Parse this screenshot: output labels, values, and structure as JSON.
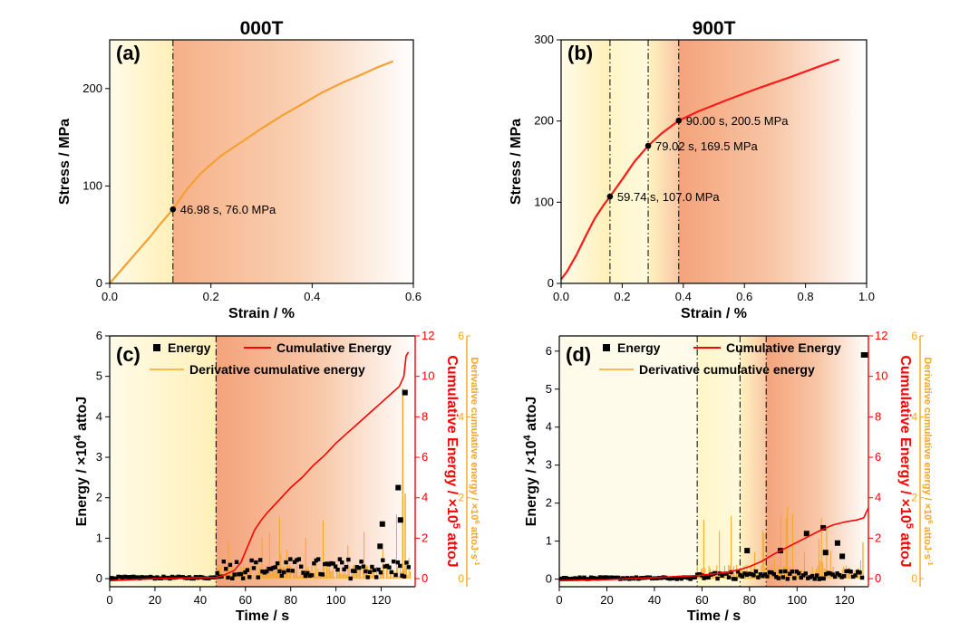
{
  "chart_data": [
    {
      "panel": "(a)",
      "type": "line",
      "title": "000T",
      "xlabel": "Strain / %",
      "ylabel": "Stress / MPa",
      "xlim": [
        0,
        0.6
      ],
      "ylim": [
        0,
        250
      ],
      "xticks": [
        "0.0",
        "0.2",
        "0.4",
        "0.6"
      ],
      "yticks": [
        "0",
        "100",
        "200"
      ],
      "colors": {
        "line": "#f5a033",
        "region1": "#fff6c8",
        "region2": "#f7b98f"
      },
      "series": [
        {
          "x": [
            0,
            0.02,
            0.05,
            0.08,
            0.1,
            0.125,
            0.15,
            0.18,
            0.22,
            0.26,
            0.3,
            0.34,
            0.38,
            0.42,
            0.46,
            0.5,
            0.53,
            0.56
          ],
          "y": [
            0,
            12,
            30,
            48,
            61,
            76,
            95,
            113,
            131,
            145,
            159,
            172,
            184,
            196,
            206,
            215,
            222,
            228
          ]
        }
      ],
      "vlines": [
        0.125
      ],
      "points": [
        {
          "x": 0.125,
          "y": 76.0,
          "label": "46.98 s, 76.0 MPa"
        }
      ]
    },
    {
      "panel": "(b)",
      "type": "line",
      "title": "900T",
      "xlabel": "Strain / %",
      "ylabel": "Stress / MPa",
      "xlim": [
        0,
        1.0
      ],
      "ylim": [
        0,
        300
      ],
      "xticks": [
        "0.0",
        "0.2",
        "0.4",
        "0.6",
        "0.8",
        "1.0"
      ],
      "yticks": [
        "0",
        "100",
        "200",
        "300"
      ],
      "colors": {
        "line": "#ff1a1a",
        "region1": "#fff6c8",
        "region2": "#f7b98f"
      },
      "series": [
        {
          "x": [
            0,
            0.02,
            0.05,
            0.08,
            0.11,
            0.14,
            0.16,
            0.2,
            0.24,
            0.285,
            0.33,
            0.385,
            0.45,
            0.55,
            0.65,
            0.75,
            0.85,
            0.91
          ],
          "y": [
            5,
            15,
            35,
            58,
            80,
            97,
            107,
            128,
            150,
            169.5,
            185,
            200.5,
            212,
            227,
            241,
            254,
            268,
            276
          ]
        }
      ],
      "vlines": [
        0.16,
        0.285,
        0.385
      ],
      "points": [
        {
          "x": 0.16,
          "y": 107.0,
          "label": "59.74 s, 107.0 MPa"
        },
        {
          "x": 0.285,
          "y": 169.5,
          "label": "79.02 s, 169.5 MPa"
        },
        {
          "x": 0.385,
          "y": 200.5,
          "label": "90.00 s, 200.5 MPa"
        }
      ]
    },
    {
      "panel": "(c)",
      "type": "scatter",
      "xlabel": "Time / s",
      "ylabel_main": "Energy / ×10",
      "ylabel_sup": "4",
      "ylabel_unit": " attoJ",
      "y2label_main": "Cumulative Energy / ×10",
      "y2label_sup": "5",
      "y2label_unit": " attoJ",
      "y3label_main": "Derivative cumulative energy / ×10",
      "y3label_sup": "6",
      "y3label_unit": " attoJ·s",
      "y3label_sup2": "-1",
      "xlim": [
        0,
        135
      ],
      "ylim": [
        -0.2,
        6
      ],
      "y2lim": [
        -0.4,
        12
      ],
      "y3lim": [
        -0.2,
        6
      ],
      "xticks": [
        "0",
        "20",
        "40",
        "60",
        "80",
        "100",
        "120"
      ],
      "yticks": [
        "0",
        "1",
        "2",
        "3",
        "4",
        "5",
        "6"
      ],
      "y2ticks": [
        "0",
        "2",
        "4",
        "6",
        "8",
        "10",
        "12"
      ],
      "y3ticks": [
        "0",
        "2",
        "4",
        "6"
      ],
      "vlines": [
        47
      ],
      "legend": {
        "energy": "Energy",
        "cumulative": "Cumulative Energy",
        "derivative": "Derivative cumulative energy"
      },
      "colors": {
        "energy": "#000000",
        "cumulative": "#ff0000",
        "derivative": "#f5a623"
      },
      "energy_outliers": {
        "x": [
          120.5,
          127.5,
          128.5,
          130.5,
          119.5
        ],
        "y": [
          1.35,
          2.25,
          1.45,
          4.6,
          0.8
        ]
      },
      "cumulative": {
        "x": [
          0,
          20,
          40,
          47,
          50,
          55,
          58,
          61,
          64,
          67,
          70,
          75,
          80,
          85,
          90,
          95,
          100,
          105,
          110,
          115,
          120,
          125,
          128,
          130,
          131,
          132
        ],
        "y": [
          -0.1,
          0,
          0.05,
          0.05,
          0.15,
          0.4,
          0.8,
          1.6,
          2.4,
          2.9,
          3.3,
          3.9,
          4.5,
          5.0,
          5.6,
          6.1,
          6.7,
          7.2,
          7.7,
          8.2,
          8.7,
          9.2,
          9.5,
          10.0,
          11.0,
          11.2
        ]
      }
    },
    {
      "panel": "(d)",
      "type": "scatter",
      "xlabel": "Time / s",
      "ylabel_main": "Energy / ×10",
      "ylabel_sup": "4",
      "ylabel_unit": " attoJ",
      "y2label_main": "Cumulative Energy / ×10",
      "y2label_sup": "5",
      "y2label_unit": " attoJ",
      "y3label_main": "Derivative cumulative energy / ×10",
      "y3label_sup": "6",
      "y3label_unit": " attoJ·s",
      "y3label_sup2": "-1",
      "xlim": [
        0,
        130
      ],
      "ylim": [
        -0.2,
        6.4
      ],
      "y2lim": [
        -0.4,
        12
      ],
      "y3lim": [
        -0.2,
        6
      ],
      "xticks": [
        "0",
        "20",
        "40",
        "60",
        "80",
        "100",
        "120"
      ],
      "yticks": [
        "0",
        "1",
        "2",
        "3",
        "4",
        "5",
        "6"
      ],
      "y2ticks": [
        "0",
        "2",
        "4",
        "6",
        "8",
        "10",
        "12"
      ],
      "y3ticks": [
        "0",
        "2",
        "4",
        "6"
      ],
      "vlines": [
        58,
        76,
        87
      ],
      "legend": {
        "energy": "Energy",
        "cumulative": "Cumulative Energy",
        "derivative": "Derivative cumulative energy"
      },
      "colors": {
        "energy": "#000000",
        "cumulative": "#ff0000",
        "derivative": "#f5a623"
      },
      "energy_outliers": {
        "x": [
          79,
          93,
          104,
          111,
          112,
          117,
          119,
          128,
          129
        ],
        "y": [
          0.75,
          0.75,
          1.2,
          1.35,
          0.7,
          0.95,
          0.6,
          5.9,
          5.9
        ]
      },
      "cumulative": {
        "x": [
          0,
          20,
          40,
          58,
          70,
          76,
          80,
          85,
          90,
          95,
          100,
          105,
          110,
          115,
          120,
          125,
          128,
          130
        ],
        "y": [
          -0.1,
          -0.05,
          0.05,
          0.15,
          0.3,
          0.45,
          0.6,
          0.85,
          1.2,
          1.5,
          1.8,
          2.1,
          2.4,
          2.65,
          2.8,
          2.9,
          3.0,
          3.5
        ]
      }
    }
  ]
}
